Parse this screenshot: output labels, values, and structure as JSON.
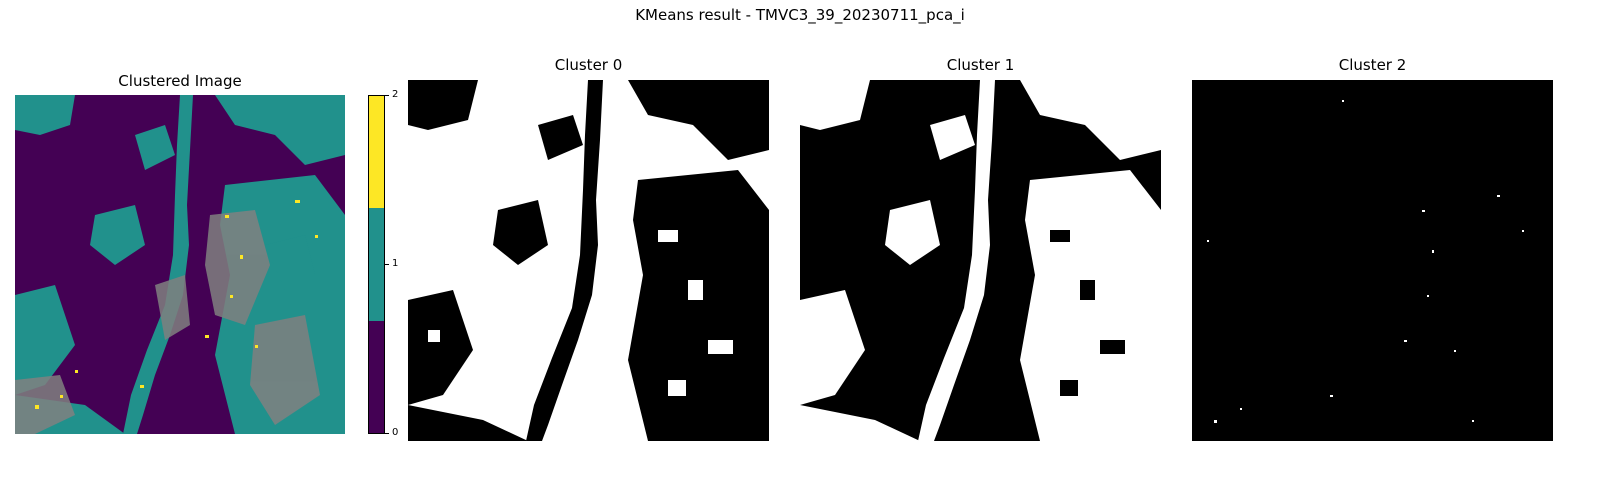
{
  "figure": {
    "title": "KMeans result - TMVC3_39_20230711_pca_i"
  },
  "chart_data": {
    "type": "image",
    "title": "KMeans result - TMVC3_39_20230711_pca_i",
    "subplots": [
      {
        "title": "Clustered Image",
        "kind": "cluster_label_map",
        "n_clusters": 3,
        "colormap": "viridis"
      },
      {
        "title": "Cluster 0",
        "kind": "binary_mask",
        "cluster": 0
      },
      {
        "title": "Cluster 1",
        "kind": "binary_mask",
        "cluster": 1
      },
      {
        "title": "Cluster 2",
        "kind": "binary_mask",
        "cluster": 2
      }
    ],
    "colorbar": {
      "ticks": [
        "0",
        "1",
        "2"
      ],
      "range": [
        0,
        2
      ],
      "colors": [
        "#440154",
        "#21918c",
        "#fde725"
      ]
    }
  }
}
